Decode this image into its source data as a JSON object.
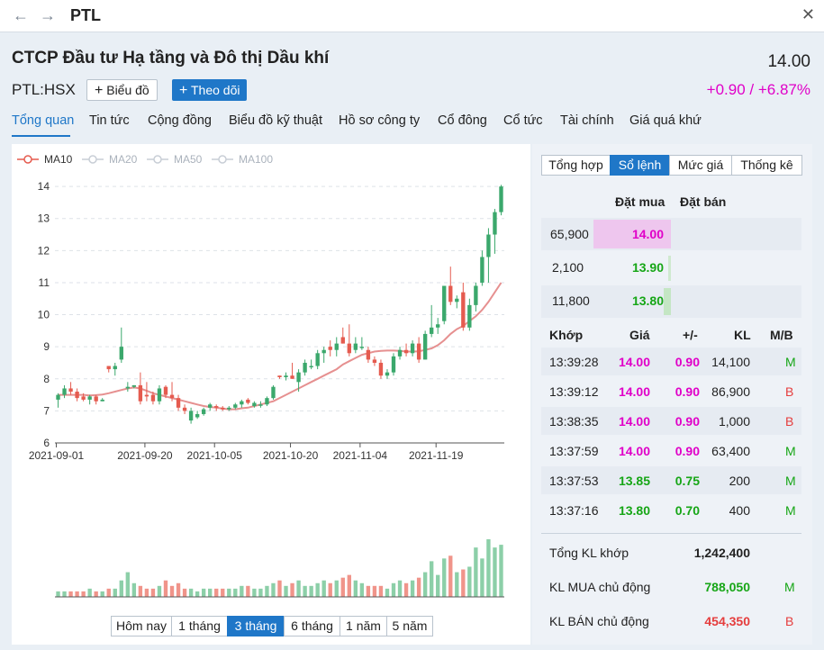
{
  "window": {
    "title": "PTL"
  },
  "header": {
    "company_name": "CTCP Đầu tư Hạ tầng và Đô thị Dầu khí",
    "price": "14.00",
    "ticker": "PTL:HSX",
    "chart_button": "Biểu đồ",
    "follow_button": "Theo dõi",
    "change": "+0.90 / +6.87%"
  },
  "tabs": [
    "Tổng quan",
    "Tin tức",
    "Cộng đồng",
    "Biểu đồ kỹ thuật",
    "Hồ sơ công ty",
    "Cổ đông",
    "Cổ tức",
    "Tài chính",
    "Giá quá khứ"
  ],
  "legend": [
    "MA10",
    "MA20",
    "MA50",
    "MA100"
  ],
  "periods": [
    "Hôm nay",
    "1 tháng",
    "3 tháng",
    "6 tháng",
    "1 năm",
    "5 năm"
  ],
  "colors": {
    "up": "#3ba86c",
    "down": "#e55b4f",
    "ma": "#e69090",
    "accent": "#1f77c8",
    "magenta": "#e000c8"
  },
  "chart_data": {
    "type": "candlestick",
    "x_ticks": [
      "2021-09-01",
      "2021-09-20",
      "2021-10-05",
      "2021-10-20",
      "2021-11-04",
      "2021-11-19"
    ],
    "y_ticks": [
      6,
      7,
      8,
      9,
      10,
      11,
      12,
      13,
      14
    ],
    "ylim": [
      6,
      14.2
    ],
    "candles": [
      [
        7.35,
        7.55,
        7.1,
        7.5
      ],
      [
        7.5,
        7.8,
        7.4,
        7.7
      ],
      [
        7.7,
        7.9,
        7.5,
        7.6
      ],
      [
        7.6,
        7.7,
        7.3,
        7.4
      ],
      [
        7.45,
        7.55,
        7.3,
        7.35
      ],
      [
        7.35,
        7.5,
        7.2,
        7.45
      ],
      [
        7.45,
        7.5,
        7.2,
        7.3
      ],
      [
        7.3,
        7.4,
        7.3,
        7.35
      ],
      [
        8.4,
        8.4,
        8.2,
        8.3
      ],
      [
        8.3,
        8.5,
        8.1,
        8.4
      ],
      [
        8.6,
        9.6,
        8.5,
        9.0
      ],
      [
        7.7,
        7.9,
        7.6,
        7.75
      ],
      [
        7.75,
        7.8,
        7.7,
        7.8
      ],
      [
        7.8,
        8.2,
        7.2,
        7.3
      ],
      [
        7.5,
        7.9,
        7.3,
        7.45
      ],
      [
        7.5,
        7.6,
        7.2,
        7.3
      ],
      [
        7.3,
        7.8,
        7.2,
        7.7
      ],
      [
        7.75,
        7.8,
        7.4,
        7.5
      ],
      [
        7.5,
        7.9,
        7.3,
        7.4
      ],
      [
        7.4,
        7.5,
        7.0,
        7.1
      ],
      [
        7.1,
        7.2,
        6.9,
        7.0
      ],
      [
        6.7,
        7.1,
        6.6,
        7.0
      ],
      [
        6.8,
        7.0,
        6.75,
        6.9
      ],
      [
        6.9,
        7.1,
        6.85,
        7.05
      ],
      [
        7.1,
        7.25,
        7.0,
        7.2
      ],
      [
        7.15,
        7.2,
        7.0,
        7.1
      ],
      [
        7.1,
        7.15,
        7.0,
        7.05
      ],
      [
        7.05,
        7.15,
        7.0,
        7.1
      ],
      [
        7.1,
        7.25,
        7.05,
        7.2
      ],
      [
        7.2,
        7.35,
        7.1,
        7.3
      ],
      [
        7.35,
        7.4,
        7.2,
        7.25
      ],
      [
        7.15,
        7.3,
        7.1,
        7.25
      ],
      [
        7.2,
        7.3,
        7.1,
        7.2
      ],
      [
        7.2,
        7.45,
        7.15,
        7.4
      ],
      [
        7.4,
        7.8,
        7.35,
        7.75
      ],
      [
        8.1,
        8.1,
        8.0,
        8.05
      ],
      [
        8.05,
        8.2,
        7.95,
        8.1
      ],
      [
        8.1,
        8.5,
        8.0,
        8.0
      ],
      [
        7.9,
        8.3,
        7.6,
        8.2
      ],
      [
        8.2,
        8.6,
        8.1,
        8.5
      ],
      [
        8.4,
        8.6,
        8.3,
        8.4
      ],
      [
        8.4,
        8.9,
        8.3,
        8.8
      ],
      [
        8.8,
        9.0,
        8.5,
        8.9
      ],
      [
        9.0,
        9.2,
        8.7,
        8.9
      ],
      [
        8.9,
        9.3,
        8.7,
        9.1
      ],
      [
        9.3,
        9.6,
        9.1,
        9.1
      ],
      [
        9.1,
        9.7,
        8.7,
        8.8
      ],
      [
        8.9,
        9.3,
        8.8,
        9.1
      ],
      [
        9.0,
        9.3,
        8.9,
        9.0
      ],
      [
        8.9,
        9.0,
        8.5,
        8.6
      ],
      [
        8.6,
        8.7,
        8.4,
        8.5
      ],
      [
        8.5,
        8.6,
        8.0,
        8.1
      ],
      [
        8.1,
        8.3,
        8.0,
        8.2
      ],
      [
        8.2,
        8.8,
        8.1,
        8.7
      ],
      [
        8.7,
        9.0,
        8.6,
        8.9
      ],
      [
        8.9,
        9.1,
        8.7,
        8.8
      ],
      [
        8.8,
        9.2,
        8.7,
        9.1
      ],
      [
        9.1,
        9.3,
        8.5,
        8.6
      ],
      [
        8.6,
        9.5,
        8.6,
        9.4
      ],
      [
        9.4,
        10.3,
        9.3,
        9.6
      ],
      [
        9.6,
        9.9,
        9.4,
        9.7
      ],
      [
        9.8,
        10.9,
        9.7,
        10.9
      ],
      [
        10.9,
        11.5,
        10.3,
        10.4
      ],
      [
        10.4,
        10.6,
        10.2,
        10.5
      ],
      [
        10.7,
        11.0,
        9.5,
        9.6
      ],
      [
        9.6,
        10.5,
        9.5,
        10.3
      ],
      [
        10.3,
        11.0,
        10.1,
        10.9
      ],
      [
        11.0,
        12.0,
        10.9,
        11.8
      ],
      [
        11.8,
        12.7,
        11.0,
        12.5
      ],
      [
        12.5,
        13.3,
        11.9,
        13.2
      ],
      [
        13.2,
        14.05,
        13.1,
        14.0
      ]
    ],
    "ma10": [
      7.5,
      7.5,
      7.5,
      7.5,
      7.5,
      7.48,
      7.49,
      7.51,
      7.55,
      7.6,
      7.65,
      7.7,
      7.73,
      7.7,
      7.63,
      7.55,
      7.5,
      7.45,
      7.4,
      7.35,
      7.3,
      7.25,
      7.2,
      7.15,
      7.12,
      7.1,
      7.07,
      7.05,
      7.05,
      7.08,
      7.1,
      7.15,
      7.2,
      7.25,
      7.3,
      7.4,
      7.5,
      7.6,
      7.7,
      7.8,
      7.9,
      8.0,
      8.1,
      8.2,
      8.3,
      8.45,
      8.55,
      8.65,
      8.75,
      8.8,
      8.85,
      8.87,
      8.88,
      8.88,
      8.87,
      8.85,
      8.85,
      8.86,
      8.9,
      8.95,
      9.05,
      9.2,
      9.4,
      9.55,
      9.65,
      9.8,
      9.95,
      10.15,
      10.4,
      10.7,
      11.0
    ]
  },
  "volumes": [
    2,
    2,
    2,
    2,
    2,
    3,
    2,
    2,
    3,
    3,
    6,
    9,
    5,
    4,
    3,
    3,
    4,
    6,
    4,
    5,
    3,
    3,
    2,
    3,
    3,
    3,
    3,
    3,
    3,
    4,
    4,
    3,
    3,
    4,
    5,
    6,
    4,
    5,
    6,
    4,
    4,
    5,
    6,
    5,
    6,
    7,
    8,
    6,
    5,
    4,
    4,
    4,
    3,
    5,
    6,
    5,
    6,
    7,
    9,
    13,
    8,
    14,
    15,
    9,
    10,
    11,
    18,
    14,
    21,
    18,
    19
  ],
  "order_tabs": [
    "Tổng hợp",
    "Sổ lệnh",
    "Mức giá",
    "Thống kê"
  ],
  "book": {
    "buy_header": "Đặt mua",
    "sell_header": "Đặt bán",
    "rows": [
      {
        "qty": "65,900",
        "price": "14.00"
      },
      {
        "qty": "2,100",
        "price": "13.90"
      },
      {
        "qty": "11,800",
        "price": "13.80"
      }
    ]
  },
  "trades": {
    "headers": [
      "Khớp",
      "Giá",
      "+/-",
      "KL",
      "M/B"
    ],
    "rows": [
      {
        "time": "13:39:28",
        "price": "14.00",
        "chg": "0.90",
        "vol": "14,100",
        "side": "M"
      },
      {
        "time": "13:39:12",
        "price": "14.00",
        "chg": "0.90",
        "vol": "86,900",
        "side": "B"
      },
      {
        "time": "13:38:35",
        "price": "14.00",
        "chg": "0.90",
        "vol": "1,000",
        "side": "B"
      },
      {
        "time": "13:37:59",
        "price": "14.00",
        "chg": "0.90",
        "vol": "63,400",
        "side": "M"
      },
      {
        "time": "13:37:53",
        "price": "13.85",
        "chg": "0.75",
        "vol": "200",
        "side": "M"
      },
      {
        "time": "13:37:16",
        "price": "13.80",
        "chg": "0.70",
        "vol": "400",
        "side": "M"
      }
    ]
  },
  "summary": {
    "total_label": "Tổng KL khớp",
    "total_value": "1,242,400",
    "buy_label": "KL MUA chủ động",
    "buy_value": "788,050",
    "buy_side": "M",
    "sell_label": "KL BÁN chủ động",
    "sell_value": "454,350",
    "sell_side": "B"
  }
}
